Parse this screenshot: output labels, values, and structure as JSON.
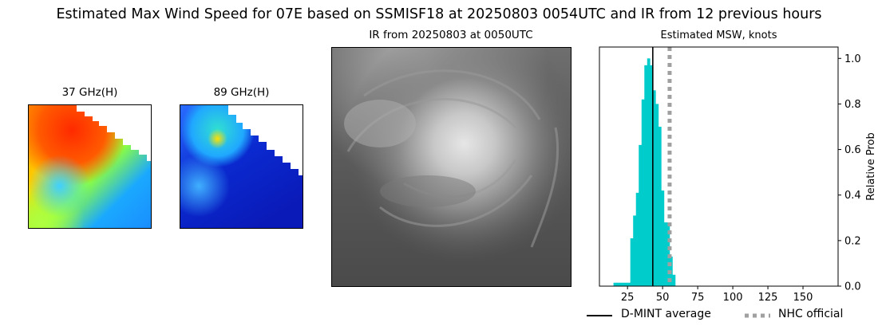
{
  "figure": {
    "title": "Estimated Max Wind Speed for 07E based on SSMISF18 at 20250803 0054UTC and IR from 12 previous hours"
  },
  "panels": {
    "ghz37": {
      "title": "37 GHz(H)"
    },
    "ghz89": {
      "title": "89 GHz(H)"
    },
    "ir": {
      "title": "IR from 20250803 at 0050UTC"
    }
  },
  "chart_data": {
    "type": "bar",
    "title": "Estimated MSW, knots",
    "xlabel": "",
    "ylabel": "Relative Prob",
    "xlim": [
      5,
      175
    ],
    "ylim": [
      0,
      1.05
    ],
    "xticks": [
      25,
      50,
      75,
      100,
      125,
      150
    ],
    "yticks": [
      0.0,
      0.2,
      0.4,
      0.6,
      0.8,
      1.0
    ],
    "yaxis_side": "right",
    "bin_width": 2,
    "bars": [
      {
        "x": 16,
        "value": 0.015
      },
      {
        "x": 18,
        "value": 0.015
      },
      {
        "x": 20,
        "value": 0.015
      },
      {
        "x": 22,
        "value": 0.015
      },
      {
        "x": 24,
        "value": 0.015
      },
      {
        "x": 26,
        "value": 0.015
      },
      {
        "x": 28,
        "value": 0.21
      },
      {
        "x": 30,
        "value": 0.31
      },
      {
        "x": 32,
        "value": 0.41
      },
      {
        "x": 34,
        "value": 0.62
      },
      {
        "x": 36,
        "value": 0.82
      },
      {
        "x": 38,
        "value": 0.97
      },
      {
        "x": 40,
        "value": 1.0
      },
      {
        "x": 42,
        "value": 0.97
      },
      {
        "x": 44,
        "value": 0.86
      },
      {
        "x": 46,
        "value": 0.8
      },
      {
        "x": 48,
        "value": 0.7
      },
      {
        "x": 50,
        "value": 0.42
      },
      {
        "x": 52,
        "value": 0.28
      },
      {
        "x": 54,
        "value": 0.28
      },
      {
        "x": 56,
        "value": 0.13
      },
      {
        "x": 58,
        "value": 0.05
      }
    ],
    "bar_color": "#00cccc",
    "reference_lines": [
      {
        "name": "D-MINT average",
        "x": 43,
        "style": "solid",
        "color": "#000000"
      },
      {
        "name": "NHC official",
        "x": 55,
        "style": "dotted",
        "color": "#a0a0a0"
      }
    ],
    "legend": {
      "placement": "bottom",
      "entries": [
        "D-MINT average",
        "NHC official"
      ]
    }
  }
}
